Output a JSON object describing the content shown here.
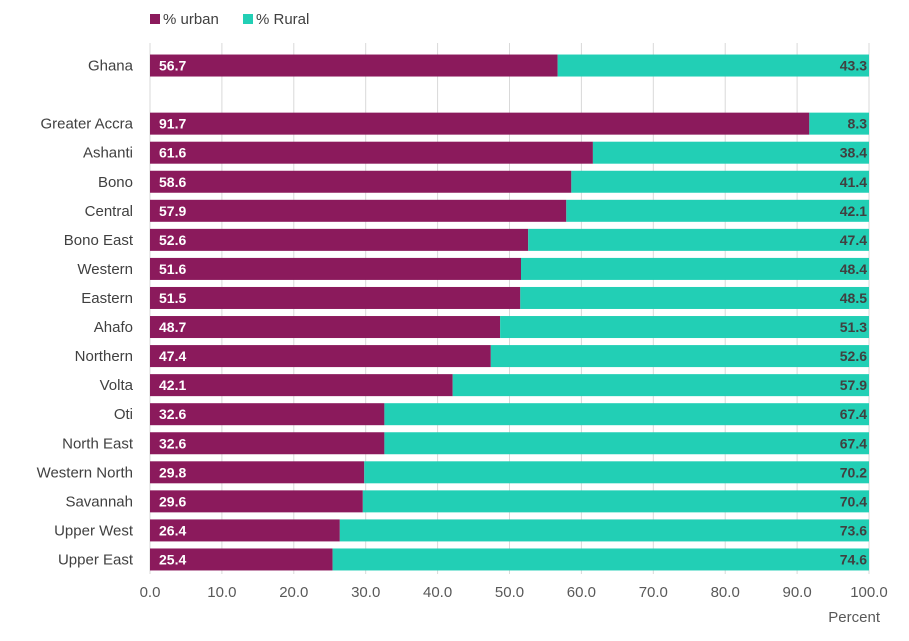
{
  "chart_data": {
    "type": "bar",
    "orientation": "horizontal",
    "stacked": true,
    "categories": [
      "Ghana",
      "",
      "Greater Accra",
      "Ashanti",
      "Bono",
      "Central",
      "Bono East",
      "Western",
      "Eastern",
      "Ahafo",
      "Northern",
      "Volta",
      "Oti",
      "North East",
      "Western North",
      "Savannah",
      "Upper West",
      "Upper East"
    ],
    "series": [
      {
        "name": "% urban",
        "color": "#8B1A5C",
        "values": [
          56.7,
          null,
          91.7,
          61.6,
          58.6,
          57.9,
          52.6,
          51.6,
          51.5,
          48.7,
          47.4,
          42.1,
          32.6,
          32.6,
          29.8,
          29.6,
          26.4,
          25.4
        ]
      },
      {
        "name": "% Rural",
        "color": "#22CFB5",
        "values": [
          43.3,
          null,
          8.3,
          38.4,
          41.4,
          42.1,
          47.4,
          48.4,
          48.5,
          51.3,
          52.6,
          57.9,
          67.4,
          67.4,
          70.2,
          70.4,
          73.6,
          74.6
        ]
      }
    ],
    "data_labels": {
      "urban": [
        "56.7",
        "",
        "91.7",
        "61.6",
        "58.6",
        "57.9",
        "52.6",
        "51.6",
        "51.5",
        "48.7",
        "47.4",
        "42.1",
        "32.6",
        "32.6",
        "29.8",
        "29.6",
        "26.4",
        "25.4"
      ],
      "rural": [
        "43.3",
        "",
        "8.3",
        "38.4",
        "41.4",
        "42.1",
        "47.4",
        "48.4",
        "48.5",
        "51.3",
        "52.6",
        "57.9",
        "67.4",
        "67.4",
        "70.2",
        "70.4",
        "73.6",
        "74.6"
      ]
    },
    "xlabel": "Percent",
    "xlim": [
      0,
      100
    ],
    "xticks": [
      "0.0",
      "10.0",
      "20.0",
      "30.0",
      "40.0",
      "50.0",
      "60.0",
      "70.0",
      "80.0",
      "90.0",
      "100.0"
    ],
    "grid": true,
    "legend_position": "top-left"
  }
}
